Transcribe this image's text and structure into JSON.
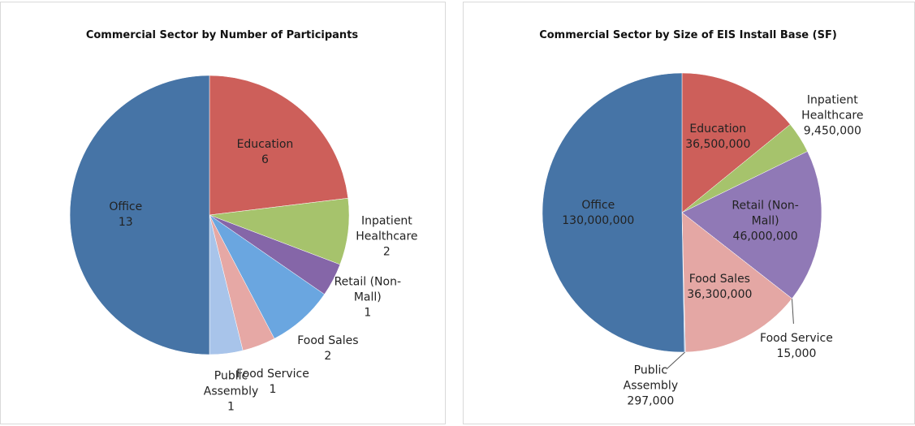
{
  "chart_data": [
    {
      "type": "pie",
      "title": "Commercial Sector by Number of Participants",
      "categories": [
        "Education",
        "Inpatient Healthcare",
        "Retail (Non-Mall)",
        "Food Sales",
        "Food Service",
        "Public Assembly",
        "Office"
      ],
      "values": [
        6,
        2,
        1,
        2,
        1,
        1,
        13
      ],
      "colors": [
        "#cd5f5a",
        "#a6c36c",
        "#8566a8",
        "#6aa6e0",
        "#e6a8a5",
        "#a8c4ea",
        "#4674a6"
      ]
    },
    {
      "type": "pie",
      "title": "Commercial Sector by Size of EIS Install Base (SF)",
      "categories": [
        "Education",
        "Inpatient Healthcare",
        "Retail (Non-Mall)",
        "Food Service",
        "Food Sales",
        "Public Assembly",
        "Office"
      ],
      "values": [
        36500000,
        9450000,
        46000000,
        15000,
        36300000,
        297000,
        130000000
      ],
      "value_labels": [
        "36,500,000",
        "9,450,000",
        "46,000,000",
        "15,000",
        "36,300,000",
        "297,000",
        "130,000,000"
      ],
      "colors": [
        "#cd5f5a",
        "#a6c36c",
        "#9079b6",
        "#8a6aa8",
        "#e4a7a4",
        "#a8c4ea",
        "#4674a6"
      ]
    }
  ]
}
